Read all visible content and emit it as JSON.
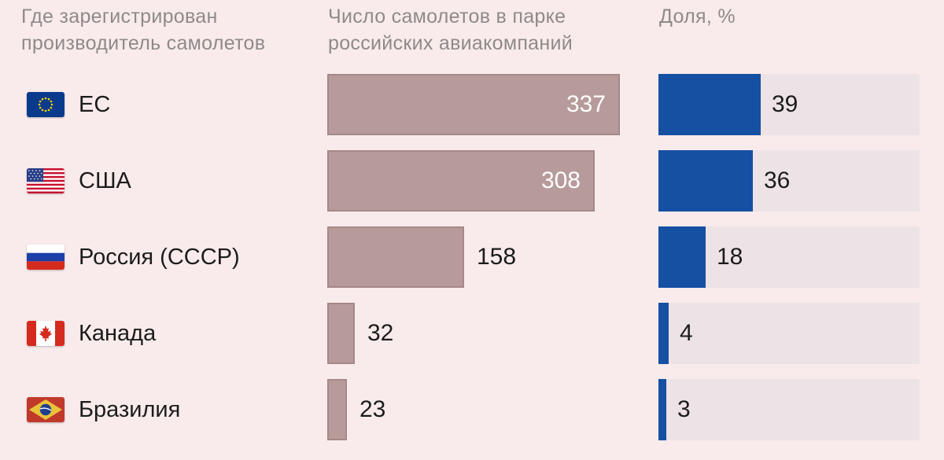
{
  "headers": {
    "country": [
      "Где зарегистрирован",
      "производитель самолетов"
    ],
    "count": [
      "Число самолетов в парке",
      "российских авиакомпаний"
    ],
    "share": [
      "Доля, %"
    ]
  },
  "chart_data": [
    {
      "type": "bar",
      "orientation": "horizontal",
      "categories": [
        "ЕС",
        "США",
        "Россия (СССР)",
        "Канада",
        "Бразилия"
      ],
      "values": [
        337,
        308,
        158,
        32,
        23
      ],
      "bar_color": "#b79b9a"
    },
    {
      "type": "bar",
      "orientation": "horizontal",
      "categories": [
        "ЕС",
        "США",
        "Россия (СССР)",
        "Канада",
        "Бразилия"
      ],
      "values": [
        39,
        36,
        18,
        4,
        3
      ],
      "bar_color": "#1550a3",
      "track_color": "#ede3e6"
    }
  ],
  "flags": [
    "eu-flag-icon",
    "usa-flag-icon",
    "russia-flag-icon",
    "canada-flag-icon",
    "brazil-flag-icon"
  ]
}
